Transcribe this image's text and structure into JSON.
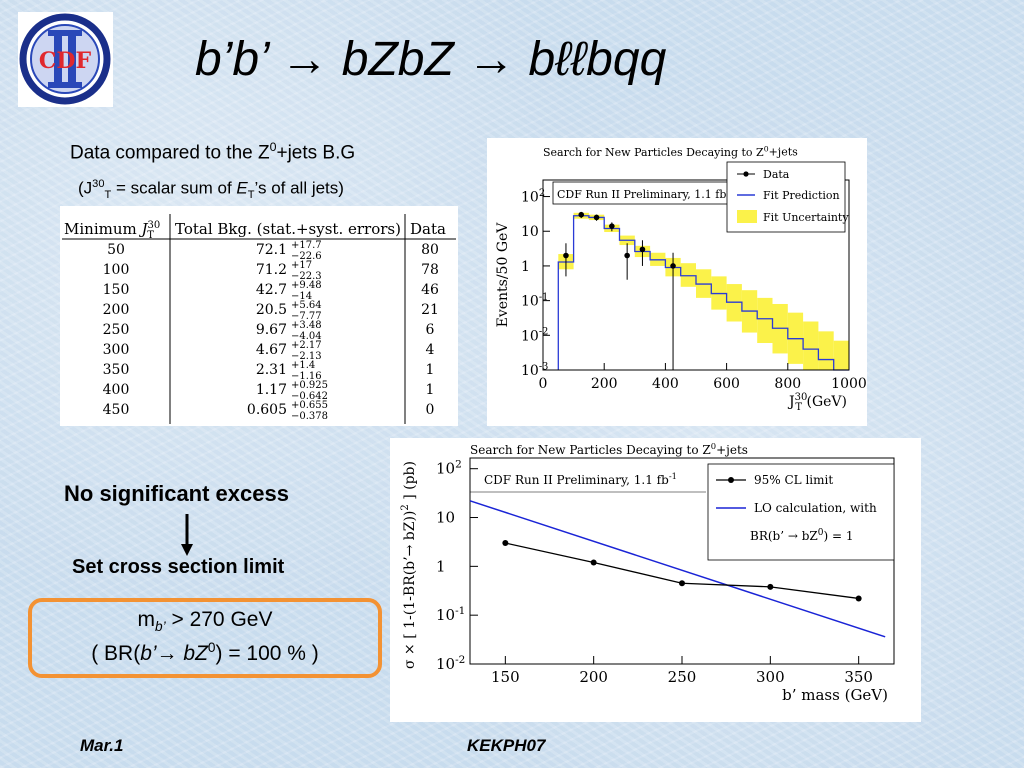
{
  "logo": {
    "text": "CDF",
    "colors": {
      "ring": "#1a2f8a",
      "letters": "#e0282e",
      "bars": "#2a48b8"
    }
  },
  "title": {
    "text": "b’b’ → bZbZ → bℓℓbqq"
  },
  "description": {
    "line1_main": "Data compared to the Z",
    "line1_sup": "0",
    "line1_tail": "+jets B.G",
    "line2_a": "(J",
    "line2_sup": "30",
    "line2_sub": "T",
    "line2_b": " = scalar sum of ",
    "line2_e": "E",
    "line2_esub": "T",
    "line2_c": "’s of all jets)"
  },
  "table": {
    "headers": [
      "Minimum J_T^30",
      "Total Bkg. (stat.+syst. errors)",
      "Data"
    ],
    "rows": [
      {
        "min": "50",
        "bkg": "72.1",
        "up": "+17.7",
        "down": "−22.6",
        "data": "80"
      },
      {
        "min": "100",
        "bkg": "71.2",
        "up": "+17",
        "down": "−22.3",
        "data": "78"
      },
      {
        "min": "150",
        "bkg": "42.7",
        "up": "+9.48",
        "down": "−14",
        "data": "46"
      },
      {
        "min": "200",
        "bkg": "20.5",
        "up": "+5.64",
        "down": "−7.77",
        "data": "21"
      },
      {
        "min": "250",
        "bkg": "9.67",
        "up": "+3.48",
        "down": "−4.04",
        "data": "6"
      },
      {
        "min": "300",
        "bkg": "4.67",
        "up": "+2.17",
        "down": "−2.13",
        "data": "4"
      },
      {
        "min": "350",
        "bkg": "2.31",
        "up": "+1.4",
        "down": "−1.16",
        "data": "1"
      },
      {
        "min": "400",
        "bkg": "1.17",
        "up": "+0.925",
        "down": "−0.642",
        "data": "1"
      },
      {
        "min": "450",
        "bkg": "0.605",
        "up": "+0.655",
        "down": "−0.378",
        "data": "0"
      }
    ]
  },
  "excess_text": "No significant excess",
  "limit_text": "Set cross section limit",
  "result": {
    "line1_m": "m",
    "line1_sub": "b’",
    "line1_rest": " > 270 GeV",
    "line2_a": "( BR(",
    "line2_b": "b’",
    "line2_arrow": "→ ",
    "line2_c": "bZ",
    "line2_sup": "0",
    "line2_d": ") = 100 % )"
  },
  "footer": {
    "left": "Mar.1",
    "center": "KEKPH07"
  },
  "chart_data": [
    {
      "type": "line",
      "title": "Search for New Particles Decaying to Z",
      "title_sup": "0",
      "title_tail": "+jets",
      "annotation": "CDF Run II Preliminary, 1.1 fb",
      "annotation_sup": "-1",
      "ylabel": "Events/50 GeV",
      "xlabel": "J",
      "xlabel_sup": "30",
      "xlabel_sub": "T",
      "xlabel_tail": " (GeV)",
      "xlim": [
        0,
        1000
      ],
      "ylim": [
        0.001,
        300
      ],
      "yscale": "log",
      "xticks": [
        "0",
        "200",
        "400",
        "600",
        "800",
        "1000"
      ],
      "yticks": [
        {
          "base": "10",
          "sup": "2"
        },
        {
          "base": "10",
          "sup": ""
        },
        {
          "base": "1",
          "sup": ""
        },
        {
          "base": "10",
          "sup": "-1"
        },
        {
          "base": "10",
          "sup": "-2"
        },
        {
          "base": "10",
          "sup": "-3"
        }
      ],
      "legend": [
        "Data",
        "Fit Prediction",
        "Fit Uncertainty"
      ],
      "legend_position": "top-right",
      "colors": {
        "data": "#000000",
        "fit": "#2a3bd6",
        "band": "#fbf24a"
      },
      "bins": [
        50,
        100,
        150,
        200,
        250,
        300,
        350,
        400,
        450,
        500,
        550,
        600,
        650,
        700,
        750,
        800,
        850,
        900,
        950,
        1000
      ],
      "fit": [
        1.3,
        28,
        25,
        12,
        5.5,
        2.6,
        1.5,
        0.9,
        0.52,
        0.3,
        0.16,
        0.09,
        0.05,
        0.03,
        0.016,
        0.008,
        0.004,
        0.002,
        0.001
      ],
      "fit_up": [
        2.2,
        34,
        30,
        15.5,
        7.5,
        3.8,
        2.4,
        1.7,
        1.2,
        0.8,
        0.5,
        0.3,
        0.2,
        0.12,
        0.08,
        0.045,
        0.025,
        0.013,
        0.007
      ],
      "fit_down": [
        0.8,
        23,
        21,
        9.5,
        4,
        1.8,
        1.0,
        0.5,
        0.25,
        0.12,
        0.055,
        0.025,
        0.012,
        0.006,
        0.003,
        0.0015,
        0.001,
        0.001,
        0.001
      ],
      "data_points": [
        {
          "x": 75,
          "y": 2,
          "up": 4.5,
          "down": 0.5
        },
        {
          "x": 125,
          "y": 30,
          "up": 36,
          "down": 24
        },
        {
          "x": 175,
          "y": 25,
          "up": 30,
          "down": 20
        },
        {
          "x": 225,
          "y": 14,
          "up": 18,
          "down": 10
        },
        {
          "x": 275,
          "y": 2,
          "up": 4.5,
          "down": 0.4
        },
        {
          "x": 325,
          "y": 3,
          "up": 5.5,
          "down": 1
        },
        {
          "x": 425,
          "y": 1,
          "up": 2.4,
          "down": 0.001
        }
      ]
    },
    {
      "type": "line",
      "title": "Search for New Particles Decaying to Z",
      "title_sup": "0",
      "title_tail": "+jets",
      "annotation": "CDF Run II Preliminary, 1.1 fb",
      "annotation_sup": "-1",
      "ylabel": "σ × [ 1-(1-BR(b’→ bZ))",
      "ylabel_sup": "2",
      "ylabel_tail": " ] (pb)",
      "xlabel": "b’ mass (GeV)",
      "xlim": [
        130,
        370
      ],
      "ylim": [
        0.01,
        200
      ],
      "yscale": "log",
      "xticks": [
        "150",
        "200",
        "250",
        "300",
        "350"
      ],
      "yticks": [
        {
          "base": "10",
          "sup": "2"
        },
        {
          "base": "10",
          "sup": ""
        },
        {
          "base": "1",
          "sup": ""
        },
        {
          "base": "10",
          "sup": "-1"
        },
        {
          "base": "10",
          "sup": "-2"
        }
      ],
      "legend": [
        "95% CL limit",
        "LO calculation, with",
        "BR(b’ → bZ",
        "0",
        ") = 1"
      ],
      "legend_position": "top-right",
      "colors": {
        "limit": "#000000",
        "lo": "#1a24d6"
      },
      "series": [
        {
          "name": "95% CL limit",
          "x": [
            150,
            200,
            250,
            300,
            350
          ],
          "y": [
            3.0,
            1.2,
            0.45,
            0.38,
            0.22
          ]
        },
        {
          "name": "LO calculation, with",
          "x": [
            130,
            365
          ],
          "y": [
            22,
            0.036
          ]
        }
      ]
    }
  ]
}
